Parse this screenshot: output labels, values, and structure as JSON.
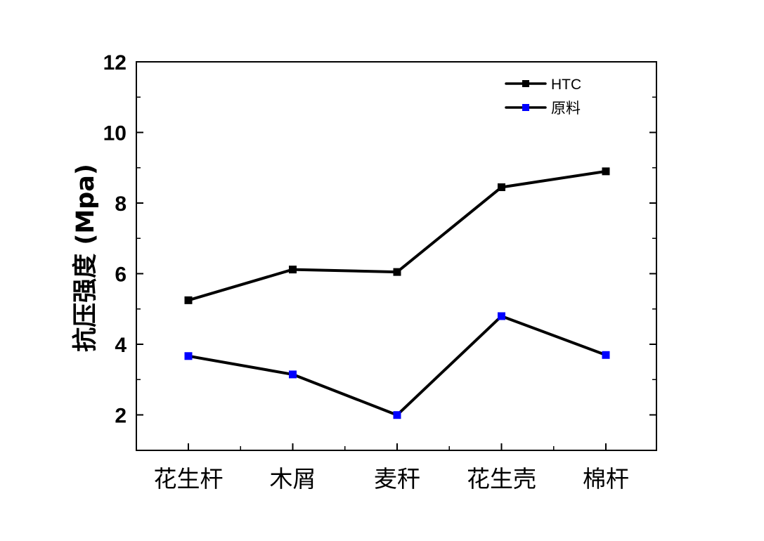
{
  "chart_data": {
    "type": "line",
    "title": "",
    "xlabel": "",
    "ylabel": "抗压强度 (Mpa)",
    "categories": [
      "花生杆",
      "木屑",
      "麦秆",
      "花生壳",
      "棉杆"
    ],
    "yticks": [
      2,
      4,
      6,
      8,
      10,
      12
    ],
    "ylim": [
      1,
      12
    ],
    "grid": false,
    "legend_position": "top-right",
    "series": [
      {
        "name": "HTC",
        "values": [
          5.25,
          6.12,
          6.05,
          8.45,
          8.9
        ],
        "line_color": "#000000",
        "marker": "square",
        "marker_color": "#000000"
      },
      {
        "name": "原料",
        "values": [
          3.67,
          3.15,
          2.0,
          4.8,
          3.7
        ],
        "line_color": "#000000",
        "marker": "square",
        "marker_color": "#0000ff"
      }
    ]
  }
}
